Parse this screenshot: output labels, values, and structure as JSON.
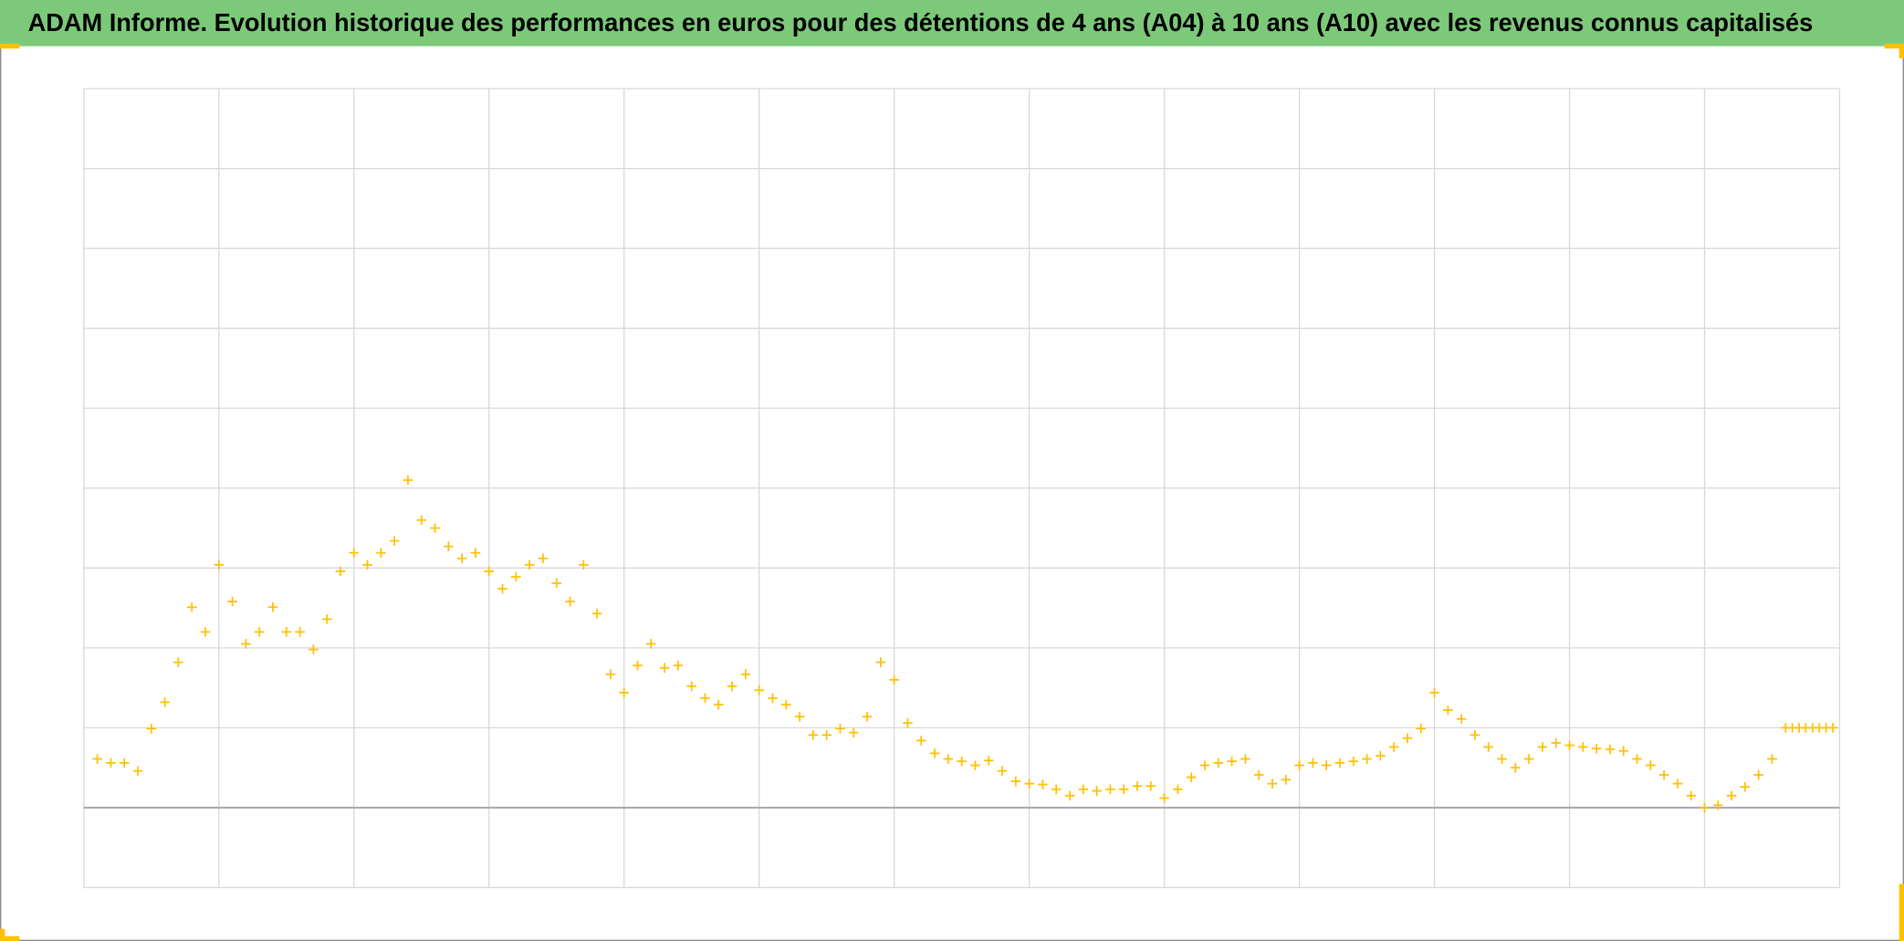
{
  "chart_data": {
    "type": "scatter",
    "title": "ADAM Informe. Evolution historique des performances en euros pour des détentions de 4 ans (A04) à 10 ans (A10) avec les revenus connus capitalisés",
    "xlim": [
      0,
      13
    ],
    "xticks": [
      0,
      1,
      2,
      3,
      4,
      5,
      6,
      7,
      8,
      9,
      10,
      11,
      12,
      13
    ],
    "ylim": [
      -1,
      9
    ],
    "yticks": [
      -1,
      0,
      1,
      2,
      3,
      4,
      5,
      6,
      7,
      8,
      9
    ],
    "grid": true,
    "series": [
      {
        "color": "#FFC000",
        "x": [
          0.1,
          0.2,
          0.3,
          0.4,
          0.5,
          0.6,
          0.7,
          0.8,
          0.9,
          1.0,
          1.1,
          1.2,
          1.3,
          1.4,
          1.5,
          1.6,
          1.7,
          1.8,
          1.9,
          2.0,
          2.1,
          2.2,
          2.3,
          2.4,
          2.5,
          2.6,
          2.7,
          2.8,
          2.9,
          3.0,
          3.1,
          3.2,
          3.3,
          3.4,
          3.5,
          3.6,
          3.7,
          3.8,
          3.9,
          4.0,
          4.1,
          4.2,
          4.3,
          4.4,
          4.5,
          4.6,
          4.7,
          4.8,
          4.9,
          5.0,
          5.1,
          5.2,
          5.3,
          5.4,
          5.5,
          5.6,
          5.7,
          5.8,
          5.9,
          6.0,
          6.1,
          6.2,
          6.3,
          6.4,
          6.5,
          6.6,
          6.7,
          6.8,
          6.9,
          7.0,
          7.1,
          7.2,
          7.3,
          7.4,
          7.5,
          7.6,
          7.7,
          7.8,
          7.9,
          8.0,
          8.1,
          8.2,
          8.3,
          8.4,
          8.5,
          8.6,
          8.7,
          8.8,
          8.9,
          9.0,
          9.1,
          9.2,
          9.3,
          9.4,
          9.5,
          9.6,
          9.7,
          9.8,
          9.9,
          10.0,
          10.1,
          10.2,
          10.3,
          10.4,
          10.5,
          10.6,
          10.7,
          10.8,
          10.9,
          11.0,
          11.1,
          11.2,
          11.3,
          11.4,
          11.5,
          11.6,
          11.7,
          11.8,
          11.9,
          12.0,
          12.1,
          12.2,
          12.3,
          12.4,
          12.5,
          12.6,
          12.65,
          12.7,
          12.75,
          12.8,
          12.85,
          12.9,
          12.95
        ],
        "values": [
          0.61,
          0.56,
          0.56,
          0.46,
          0.99,
          1.32,
          1.82,
          2.51,
          2.2,
          3.04,
          2.58,
          2.05,
          2.2,
          2.51,
          2.2,
          2.2,
          1.98,
          2.36,
          2.96,
          3.19,
          3.04,
          3.19,
          3.34,
          4.1,
          3.6,
          3.5,
          3.27,
          3.12,
          3.19,
          2.96,
          2.74,
          2.89,
          3.04,
          3.12,
          2.81,
          2.58,
          3.04,
          2.43,
          1.67,
          1.44,
          1.78,
          2.05,
          1.75,
          1.78,
          1.52,
          1.37,
          1.29,
          1.52,
          1.67,
          1.47,
          1.37,
          1.29,
          1.14,
          0.91,
          0.91,
          0.99,
          0.94,
          1.14,
          1.82,
          1.6,
          1.06,
          0.84,
          0.68,
          0.61,
          0.58,
          0.53,
          0.59,
          0.46,
          0.33,
          0.3,
          0.29,
          0.23,
          0.15,
          0.23,
          0.21,
          0.23,
          0.23,
          0.27,
          0.27,
          0.12,
          0.23,
          0.38,
          0.53,
          0.56,
          0.58,
          0.61,
          0.41,
          0.3,
          0.35,
          0.53,
          0.56,
          0.53,
          0.56,
          0.58,
          0.61,
          0.65,
          0.76,
          0.87,
          0.99,
          1.44,
          1.22,
          1.11,
          0.91,
          0.76,
          0.61,
          0.5,
          0.61,
          0.76,
          0.81,
          0.78,
          0.76,
          0.74,
          0.73,
          0.71,
          0.61,
          0.53,
          0.41,
          0.3,
          0.15,
          0.0,
          0.03,
          0.15,
          0.26,
          0.41,
          0.61,
          1.0,
          1.0,
          1.0,
          1.0,
          1.0,
          1.0,
          1.0,
          1.0
        ]
      }
    ]
  }
}
